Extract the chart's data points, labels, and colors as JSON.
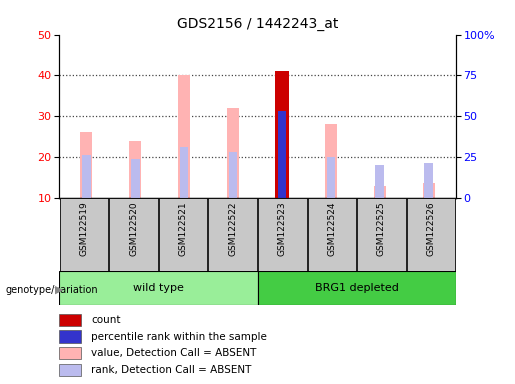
{
  "title": "GDS2156 / 1442243_at",
  "samples": [
    "GSM122519",
    "GSM122520",
    "GSM122521",
    "GSM122522",
    "GSM122523",
    "GSM122524",
    "GSM122525",
    "GSM122526"
  ],
  "ylim_left": [
    10,
    50
  ],
  "ylim_right": [
    0,
    100
  ],
  "yticks_left": [
    10,
    20,
    30,
    40,
    50
  ],
  "ytick_labels_right": [
    "0",
    "25",
    "50",
    "75",
    "100%"
  ],
  "pink_values": [
    26,
    24,
    40,
    32,
    0,
    28,
    13,
    13.5
  ],
  "lavender_ranks": [
    26,
    24,
    31,
    28,
    0,
    25,
    20,
    21
  ],
  "red_bar_index": 4,
  "red_bar_value": 41,
  "blue_bar_index": 4,
  "blue_bar_rank": 53,
  "colors": {
    "red_bar": "#CC0000",
    "blue_bar": "#3333CC",
    "pink_bar": "#FFB3B3",
    "lavender_bar": "#BBBBEE",
    "bg_xtick": "#C8C8C8",
    "group_wild": "#99EE99",
    "group_brg1": "#44CC44",
    "grid": "#555555"
  },
  "pink_bar_width": 0.25,
  "lavender_bar_width": 0.18,
  "red_bar_width": 0.3,
  "blue_bar_width": 0.18,
  "wild_type_indices": [
    0,
    1,
    2,
    3
  ],
  "brg1_indices": [
    4,
    5,
    6,
    7
  ],
  "legend_items": [
    {
      "color": "#CC0000",
      "label": "count"
    },
    {
      "color": "#3333CC",
      "label": "percentile rank within the sample"
    },
    {
      "color": "#FFB3B3",
      "label": "value, Detection Call = ABSENT"
    },
    {
      "color": "#BBBBEE",
      "label": "rank, Detection Call = ABSENT"
    }
  ]
}
